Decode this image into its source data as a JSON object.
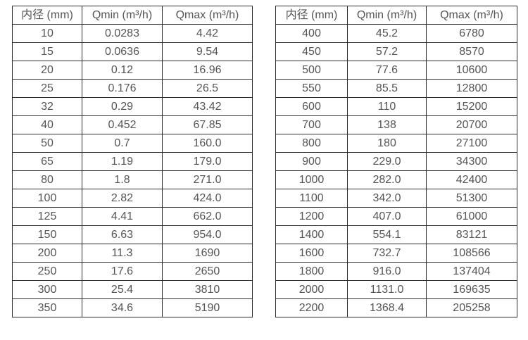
{
  "colors": {
    "background": "#ffffff",
    "border": "#2d2d2d",
    "text": "#555555"
  },
  "tables": [
    {
      "name": "flow-table-small-diameters",
      "headers": [
        "内径 (mm)",
        "Qmin (m³/h)",
        "Qmax (m³/h)"
      ],
      "rows": [
        [
          "10",
          "0.0283",
          "4.42"
        ],
        [
          "15",
          "0.0636",
          "9.54"
        ],
        [
          "20",
          "0.12",
          "16.96"
        ],
        [
          "25",
          "0.176",
          "26.5"
        ],
        [
          "32",
          "0.29",
          "43.42"
        ],
        [
          "40",
          "0.452",
          "67.85"
        ],
        [
          "50",
          "0.7",
          "160.0"
        ],
        [
          "65",
          "1.19",
          "179.0"
        ],
        [
          "80",
          "1.8",
          "271.0"
        ],
        [
          "100",
          "2.82",
          "424.0"
        ],
        [
          "125",
          "4.41",
          "662.0"
        ],
        [
          "150",
          "6.63",
          "954.0"
        ],
        [
          "200",
          "11.3",
          "1690"
        ],
        [
          "250",
          "17.6",
          "2650"
        ],
        [
          "300",
          "25.4",
          "3810"
        ],
        [
          "350",
          "34.6",
          "5190"
        ]
      ]
    },
    {
      "name": "flow-table-large-diameters",
      "headers": [
        "内径 (mm)",
        "Qmin (m³/h)",
        "Qmax (m³/h)"
      ],
      "rows": [
        [
          "400",
          "45.2",
          "6780"
        ],
        [
          "450",
          "57.2",
          "8570"
        ],
        [
          "500",
          "77.6",
          "10600"
        ],
        [
          "550",
          "85.5",
          "12800"
        ],
        [
          "600",
          "110",
          "15200"
        ],
        [
          "700",
          "138",
          "20700"
        ],
        [
          "800",
          "180",
          "27100"
        ],
        [
          "900",
          "229.0",
          "34300"
        ],
        [
          "1000",
          "282.0",
          "42400"
        ],
        [
          "1100",
          "342.0",
          "51300"
        ],
        [
          "1200",
          "407.0",
          "61000"
        ],
        [
          "1400",
          "554.1",
          "83121"
        ],
        [
          "1600",
          "732.7",
          "108566"
        ],
        [
          "1800",
          "916.0",
          "137404"
        ],
        [
          "2000",
          "1131.0",
          "169635"
        ],
        [
          "2200",
          "1368.4",
          "205258"
        ]
      ]
    }
  ]
}
